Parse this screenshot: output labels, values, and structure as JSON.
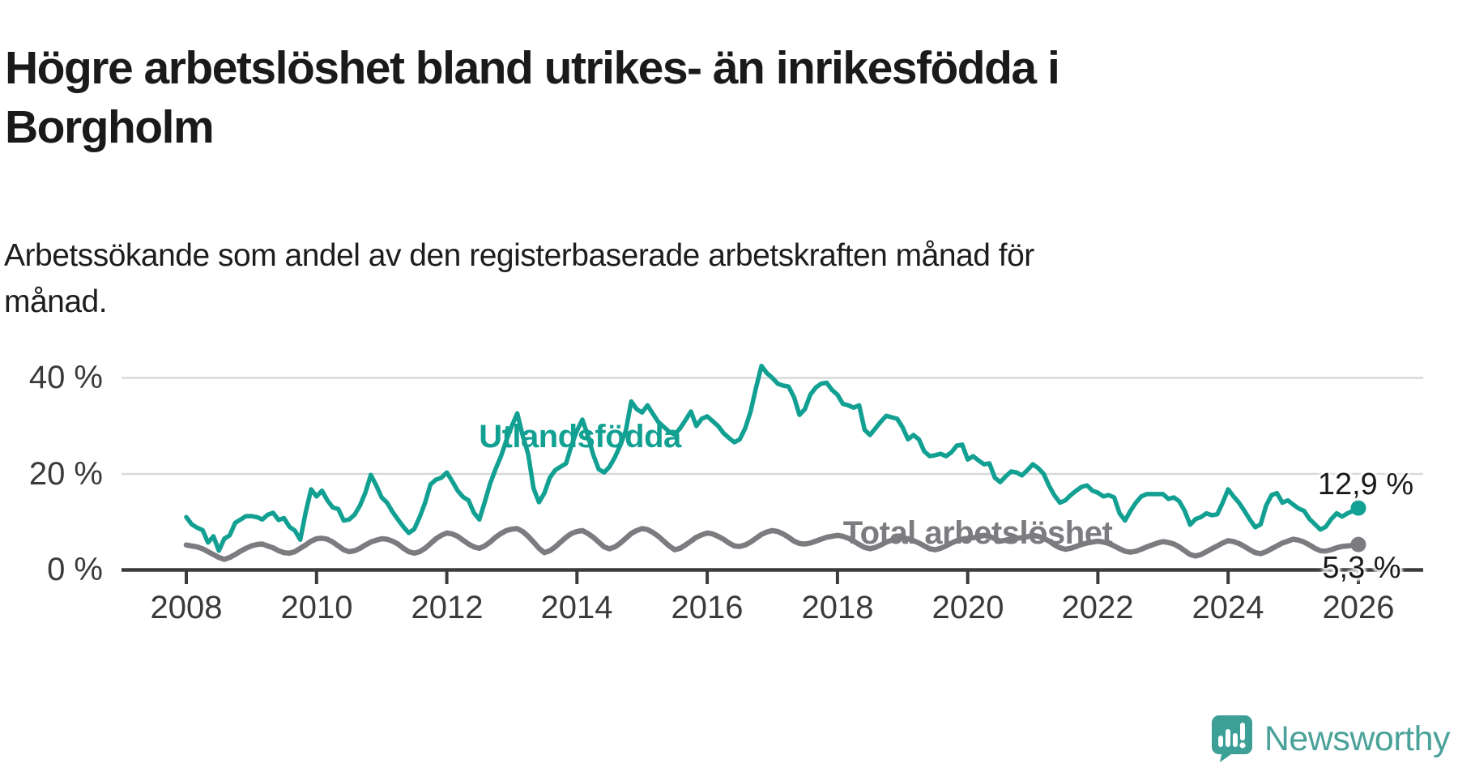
{
  "header": {
    "title_line1": "Högre arbetslöshet bland utrikes- än inrikesfödda i",
    "title_line2": "Borgholm",
    "subtitle_line1": "Arbetssökande som andel av den registerbaserade arbetskraften månad för",
    "subtitle_line2": "månad."
  },
  "chart_data": {
    "type": "line",
    "title": "Högre arbetslöshet bland utrikes- än inrikesfödda i Borgholm",
    "subtitle": "Arbetssökande som andel av den registerbaserade arbetskraften månad för månad.",
    "x_unit": "month",
    "x_start": "2008-01",
    "x_end": "2026-01",
    "x_axis": {
      "tick_labels": [
        "2008",
        "2010",
        "2012",
        "2014",
        "2016",
        "2018",
        "2020",
        "2022",
        "2024",
        "2026"
      ]
    },
    "y_axis": {
      "tick_labels": [
        "40 %",
        "20 %",
        "0 %"
      ],
      "tick_values": [
        40,
        20,
        0
      ],
      "ylim": [
        0,
        45
      ],
      "unit": "%"
    },
    "grid": "horizontal",
    "legend": "inline-labels",
    "series": [
      {
        "name": "Utlandsfödda",
        "color": "#12a092",
        "end_label": "12,9 %",
        "end_value": 12.9,
        "values": [
          11.0,
          9.5,
          8.8,
          8.3,
          5.7,
          7.0,
          4.0,
          6.5,
          7.2,
          9.8,
          10.5,
          11.2,
          11.2,
          11.0,
          10.5,
          11.5,
          11.9,
          10.4,
          10.8,
          9.0,
          8.2,
          6.3,
          12.0,
          16.8,
          15.3,
          16.5,
          14.5,
          13.0,
          12.7,
          10.3,
          10.5,
          11.5,
          13.4,
          16.1,
          19.8,
          17.6,
          15.1,
          14.0,
          12.1,
          10.5,
          9.0,
          7.7,
          8.5,
          11.0,
          14.0,
          17.8,
          18.8,
          19.2,
          20.3,
          18.5,
          16.5,
          15.2,
          14.5,
          11.9,
          10.5,
          14.1,
          18.0,
          21.0,
          23.7,
          27.0,
          30.0,
          32.6,
          28.0,
          24.2,
          17.0,
          14.1,
          16.0,
          19.2,
          20.8,
          21.5,
          22.2,
          26.0,
          29.0,
          31.3,
          28.0,
          24.0,
          21.0,
          20.3,
          21.5,
          23.5,
          26.0,
          29.0,
          35.1,
          33.5,
          32.8,
          34.3,
          32.5,
          30.8,
          29.8,
          28.8,
          28.2,
          29.5,
          31.2,
          33.0,
          30.0,
          31.5,
          32.0,
          31.0,
          30.0,
          28.5,
          27.5,
          26.6,
          27.2,
          29.5,
          33.0,
          38.0,
          42.5,
          41.0,
          40.0,
          38.8,
          38.4,
          38.2,
          36.0,
          32.3,
          33.5,
          36.5,
          38.0,
          38.8,
          39.0,
          37.5,
          36.5,
          34.6,
          34.3,
          33.8,
          34.3,
          29.2,
          28.1,
          29.5,
          30.9,
          32.1,
          31.8,
          31.5,
          29.7,
          27.2,
          28.1,
          27.2,
          24.7,
          23.7,
          23.9,
          24.2,
          23.7,
          24.5,
          25.9,
          26.1,
          23.0,
          23.7,
          22.8,
          22.0,
          22.2,
          19.2,
          18.3,
          19.5,
          20.5,
          20.3,
          19.7,
          20.8,
          22.0,
          21.2,
          20.0,
          17.5,
          15.5,
          14.0,
          14.5,
          15.6,
          16.5,
          17.3,
          17.6,
          16.5,
          16.1,
          15.3,
          15.6,
          15.1,
          11.8,
          10.3,
          12.3,
          14.0,
          15.3,
          15.8,
          15.8,
          15.8,
          15.8,
          14.8,
          15.1,
          14.3,
          12.3,
          9.4,
          10.6,
          11.0,
          11.8,
          11.4,
          11.6,
          14.0,
          16.8,
          15.3,
          14.0,
          12.3,
          10.5,
          8.9,
          9.5,
          13.4,
          15.6,
          16.0,
          14.0,
          14.5,
          13.6,
          12.8,
          12.3,
          10.6,
          9.5,
          8.4,
          9.0,
          10.6,
          11.8,
          11.1,
          11.8,
          12.3,
          12.9
        ]
      },
      {
        "name": "Total arbetslöshet",
        "color": "#7b7b80",
        "end_label": "5,3 %",
        "end_value": 5.3,
        "values": [
          5.2,
          5.0,
          4.8,
          4.4,
          3.8,
          3.2,
          2.6,
          2.2,
          2.6,
          3.2,
          3.9,
          4.5,
          5.0,
          5.3,
          5.4,
          5.0,
          4.6,
          4.0,
          3.6,
          3.5,
          3.8,
          4.5,
          5.2,
          6.0,
          6.5,
          6.6,
          6.4,
          5.8,
          5.0,
          4.2,
          3.8,
          4.0,
          4.5,
          5.2,
          5.8,
          6.2,
          6.5,
          6.4,
          6.0,
          5.4,
          4.5,
          3.8,
          3.5,
          3.8,
          4.5,
          5.5,
          6.5,
          7.2,
          7.7,
          7.5,
          7.0,
          6.2,
          5.4,
          4.8,
          4.5,
          5.0,
          5.8,
          6.8,
          7.6,
          8.2,
          8.5,
          8.6,
          8.0,
          7.0,
          5.8,
          4.5,
          3.6,
          4.0,
          4.8,
          5.8,
          6.8,
          7.6,
          8.0,
          8.2,
          7.6,
          6.8,
          5.8,
          4.8,
          4.4,
          4.8,
          5.6,
          6.6,
          7.6,
          8.2,
          8.6,
          8.4,
          7.8,
          7.0,
          6.0,
          5.0,
          4.2,
          4.5,
          5.2,
          6.0,
          6.8,
          7.3,
          7.7,
          7.5,
          7.0,
          6.4,
          5.6,
          5.0,
          4.9,
          5.2,
          5.8,
          6.6,
          7.4,
          7.9,
          8.2,
          8.0,
          7.5,
          6.8,
          6.0,
          5.5,
          5.4,
          5.6,
          6.0,
          6.4,
          6.8,
          7.0,
          7.2,
          7.0,
          6.6,
          6.0,
          5.3,
          4.7,
          4.4,
          4.7,
          5.2,
          5.8,
          6.2,
          6.5,
          6.7,
          6.5,
          6.1,
          5.6,
          5.0,
          4.4,
          4.2,
          4.5,
          5.0,
          5.6,
          6.1,
          6.4,
          6.6,
          6.7,
          6.9,
          7.2,
          7.0,
          6.5,
          6.0,
          6.2,
          6.5,
          6.6,
          6.7,
          6.9,
          7.2,
          7.0,
          6.6,
          6.0,
          5.2,
          4.6,
          4.3,
          4.5,
          4.9,
          5.3,
          5.6,
          5.8,
          6.0,
          5.8,
          5.5,
          5.0,
          4.4,
          3.9,
          3.7,
          3.9,
          4.3,
          4.8,
          5.2,
          5.6,
          5.9,
          5.7,
          5.4,
          4.8,
          4.0,
          3.2,
          2.9,
          3.2,
          3.8,
          4.4,
          5.0,
          5.6,
          6.1,
          5.9,
          5.5,
          4.9,
          4.2,
          3.6,
          3.4,
          3.8,
          4.4,
          5.0,
          5.6,
          6.0,
          6.4,
          6.2,
          5.8,
          5.2,
          4.5,
          4.0,
          3.9,
          4.2,
          4.6,
          4.9,
          5.0,
          5.1,
          5.3
        ]
      }
    ]
  },
  "branding": {
    "logo_text": "Newsworthy",
    "logo_color": "#45a39a"
  }
}
